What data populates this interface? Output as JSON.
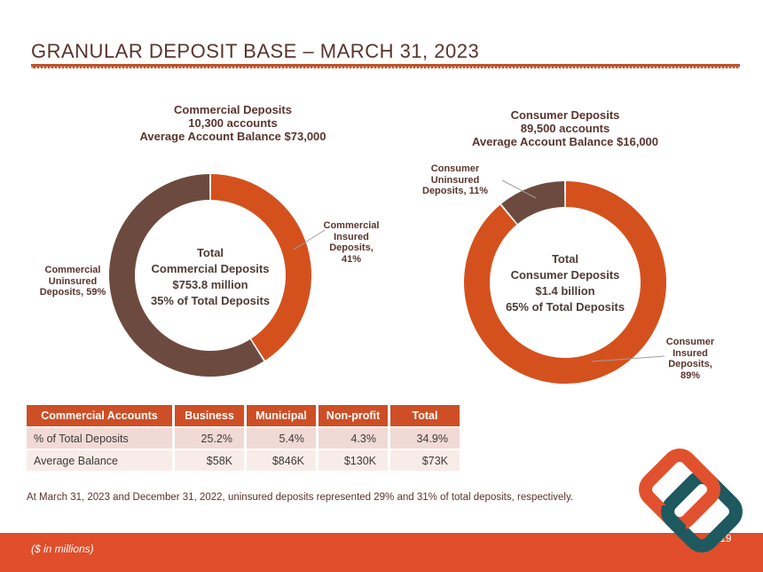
{
  "slide": {
    "title": "GRANULAR DEPOSIT BASE – MARCH 31, 2023",
    "footnote": "At March 31, 2023 and December 31, 2022, uninsured deposits represented 29% and 31% of total deposits, respectively.",
    "footer": {
      "note": "($ in millions)",
      "page_number": "19"
    }
  },
  "colors": {
    "insured_orange": "#D4511E",
    "uninsured_brown": "#6D4A40",
    "accent_bar": "#E04E2B",
    "table_header": "#CE4E25",
    "logo_teal": "#1F5960",
    "logo_orange": "#E2512E",
    "heading_brown": "#5A342E"
  },
  "chart_data": [
    {
      "type": "pie",
      "variant": "donut",
      "title": "Commercial Deposits\n10,300 accounts\nAverage Account Balance $73,000",
      "center_label": "Total\nCommercial Deposits\n$753.8 million\n35% of Total Deposits",
      "slices": [
        {
          "label": "Commercial Insured Deposits",
          "value": 41,
          "unit": "%",
          "color": "#D4511E"
        },
        {
          "label": "Commercial Uninsured Deposits",
          "value": 59,
          "unit": "%",
          "color": "#6D4A40"
        }
      ],
      "callouts": {
        "insured": "Commercial\nInsured\nDeposits,\n41%",
        "uninsured": "Commercial\nUninsured\nDeposits, 59%"
      }
    },
    {
      "type": "pie",
      "variant": "donut",
      "title": "Consumer Deposits\n89,500 accounts\nAverage Account Balance $16,000",
      "center_label": "Total\nConsumer Deposits\n$1.4 billion\n65% of Total Deposits",
      "slices": [
        {
          "label": "Consumer Insured Deposits",
          "value": 89,
          "unit": "%",
          "color": "#D4511E"
        },
        {
          "label": "Consumer Uninsured Deposits",
          "value": 11,
          "unit": "%",
          "color": "#6D4A40"
        }
      ],
      "callouts": {
        "uninsured": "Consumer\nUninsured\nDeposits, 11%",
        "insured": "Consumer\nInsured\nDeposits,\n89%"
      }
    }
  ],
  "table": {
    "headers": [
      "Commercial Accounts",
      "Business",
      "Municipal",
      "Non-profit",
      "Total"
    ],
    "rows": [
      {
        "label": "% of Total Deposits",
        "values": [
          "25.2%",
          "5.4%",
          "4.3%",
          "34.9%"
        ]
      },
      {
        "label": "Average Balance",
        "values": [
          "$58K",
          "$846K",
          "$130K",
          "$73K"
        ]
      }
    ]
  }
}
